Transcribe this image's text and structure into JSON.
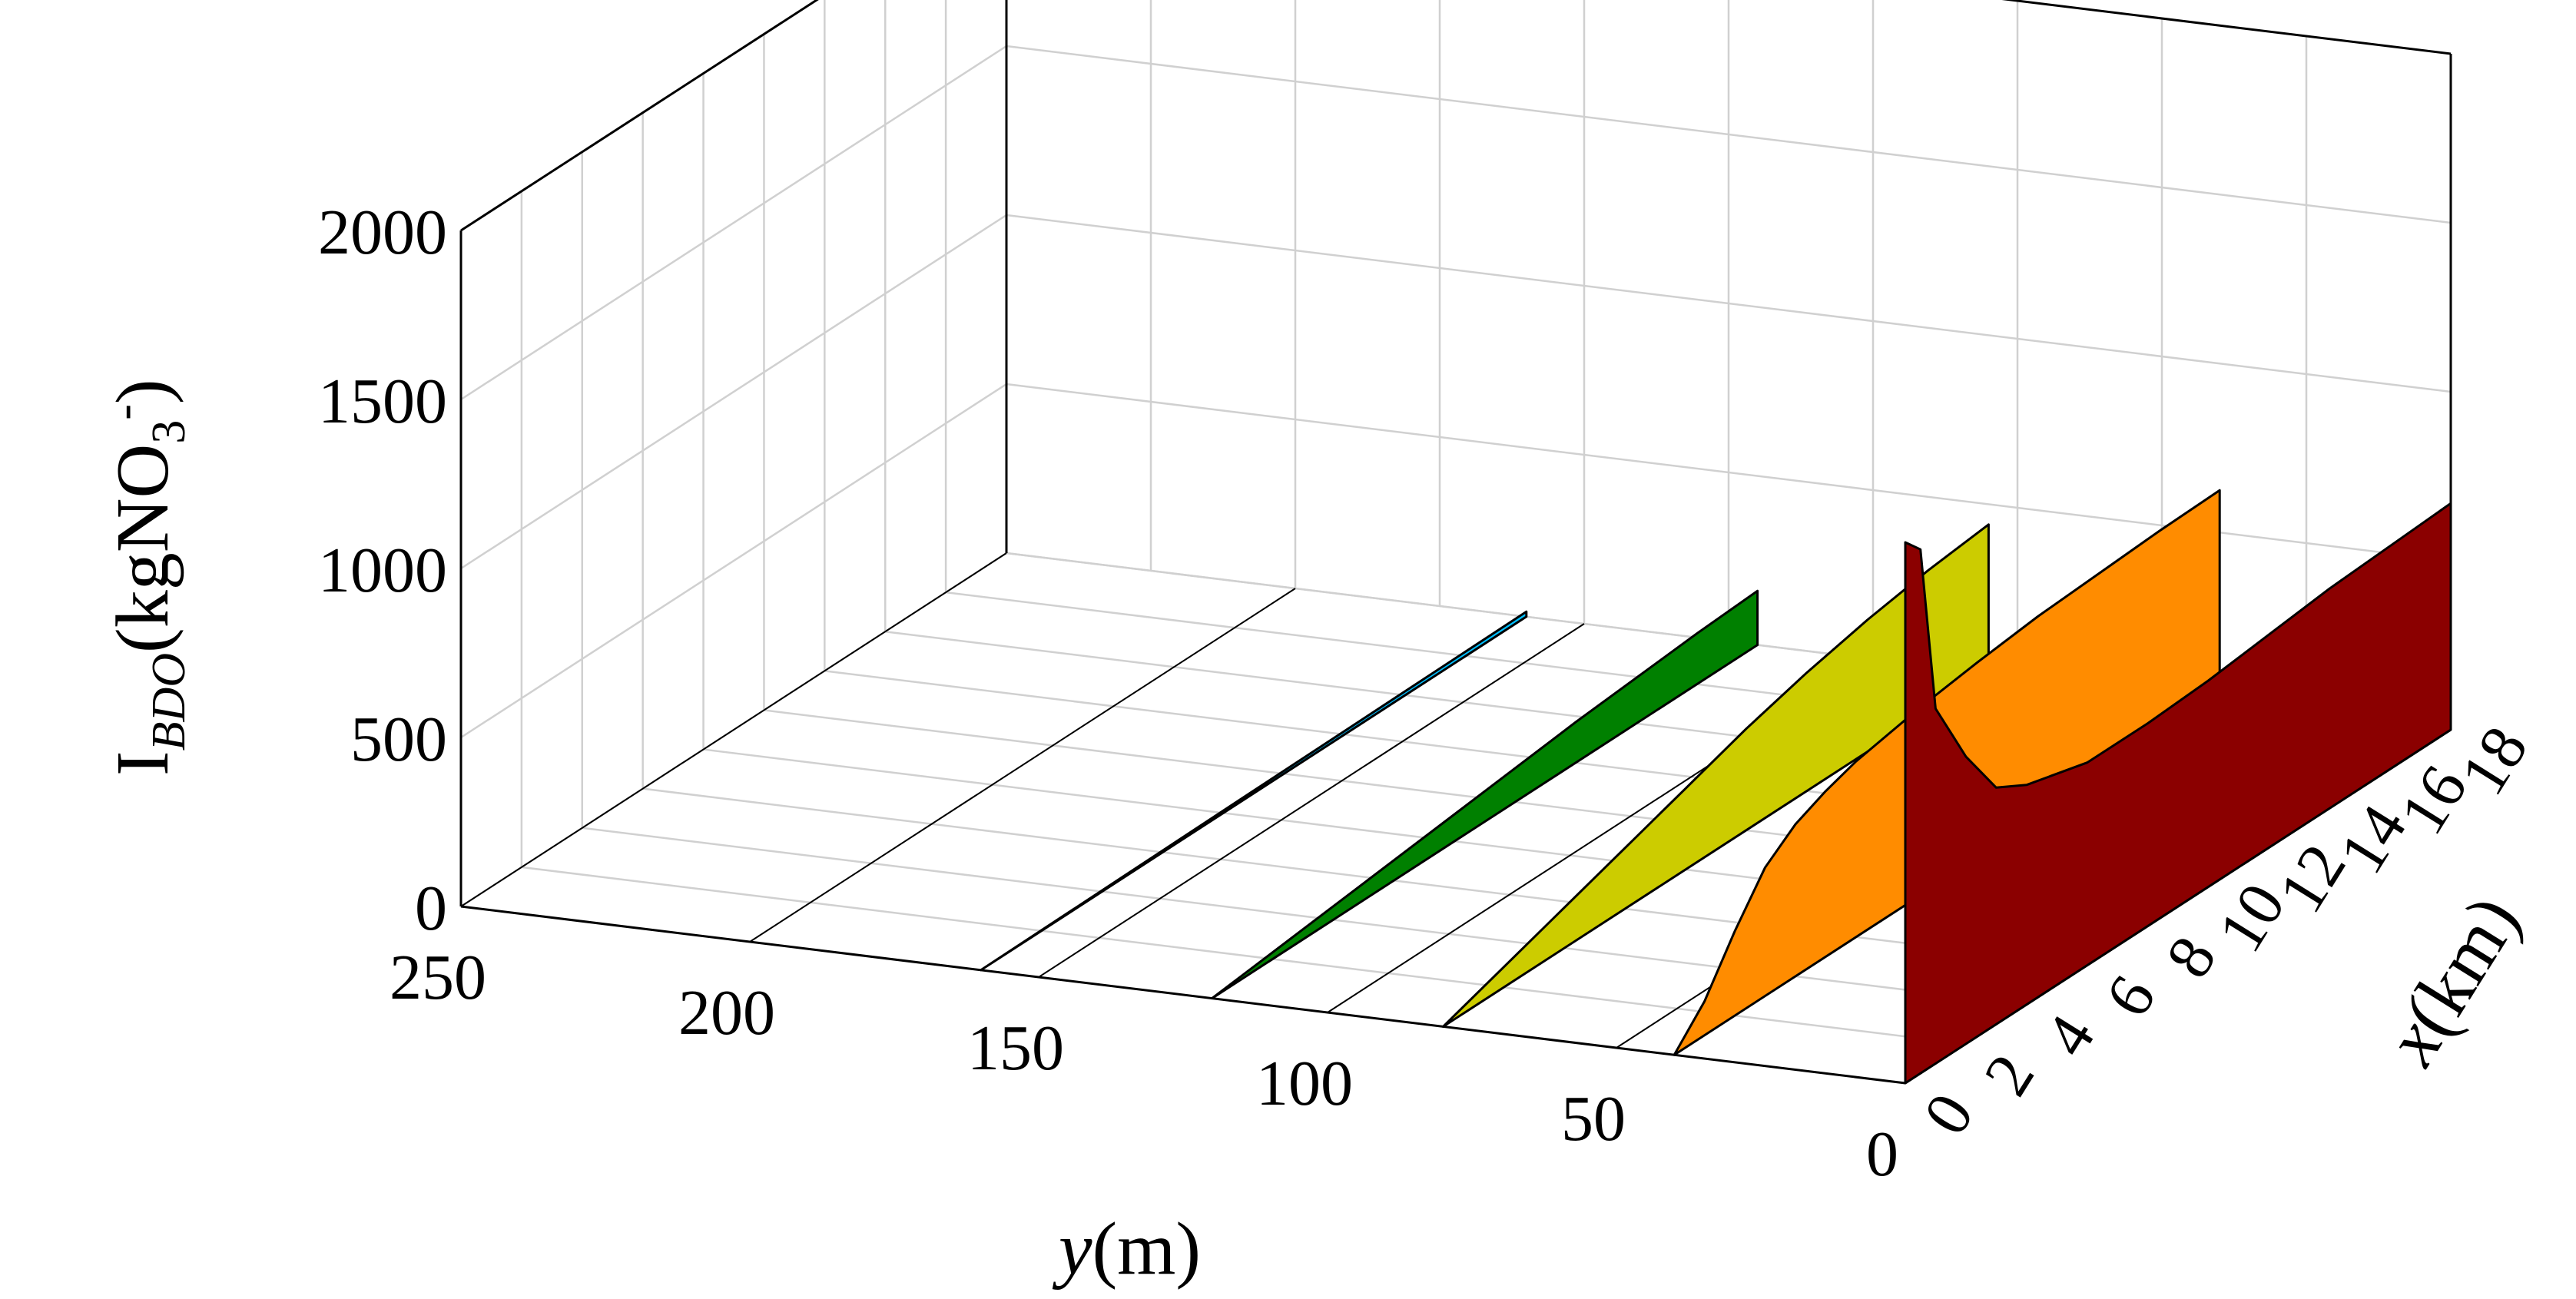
{
  "chart_data": {
    "type": "area",
    "subtype": "3d-ribbon",
    "zlabel": {
      "base": "I",
      "sub": "BDO",
      "rest": "(kgNO",
      "rest_sub": "3",
      "rest_sup": "-",
      "close": ")"
    },
    "ylabel": {
      "italic": "y",
      "rest": "(m)"
    },
    "xlabel": {
      "italic": "x",
      "rest": "(km)"
    },
    "z_ticks": [
      "0",
      "500",
      "1000",
      "1500",
      "2000"
    ],
    "y_ticks": [
      "250",
      "200",
      "150",
      "100",
      "50",
      "0"
    ],
    "x_ticks": [
      "0",
      "2",
      "4",
      "6",
      "8",
      "10",
      "12",
      "14",
      "16",
      "18"
    ],
    "zlim": [
      0,
      2000
    ],
    "ylim": [
      0,
      250
    ],
    "xlim": [
      0,
      18
    ],
    "grid": true,
    "series": [
      {
        "y": 0,
        "color": "#8b0000",
        "x": [
          0,
          0.5,
          1,
          2,
          3,
          4,
          6,
          8,
          10,
          12,
          14,
          16,
          18
        ],
        "z": [
          1600,
          1550,
          1050,
          850,
          700,
          650,
          600,
          600,
          610,
          630,
          650,
          660,
          670
        ]
      },
      {
        "y": 40,
        "color": "#ff8c00",
        "x": [
          0,
          1,
          2,
          3,
          4,
          5,
          6,
          8,
          10,
          12,
          14,
          16,
          18
        ],
        "z": [
          0,
          100,
          250,
          380,
          450,
          490,
          520,
          555,
          580,
          600,
          610,
          620,
          625
        ]
      },
      {
        "y": 80,
        "color": "#cccc00",
        "x": [
          0,
          2,
          4,
          6,
          8,
          10,
          12,
          14,
          16,
          18
        ],
        "z": [
          0,
          60,
          120,
          180,
          240,
          300,
          350,
          390,
          420,
          440
        ]
      },
      {
        "y": 120,
        "color": "#008000",
        "x": [
          0,
          4,
          8,
          12,
          16,
          18
        ],
        "z": [
          0,
          40,
          80,
          120,
          150,
          160
        ]
      },
      {
        "y": 160,
        "color": "#00bfff",
        "x": [
          0,
          9,
          18
        ],
        "z": [
          0,
          8,
          15
        ]
      }
    ]
  }
}
